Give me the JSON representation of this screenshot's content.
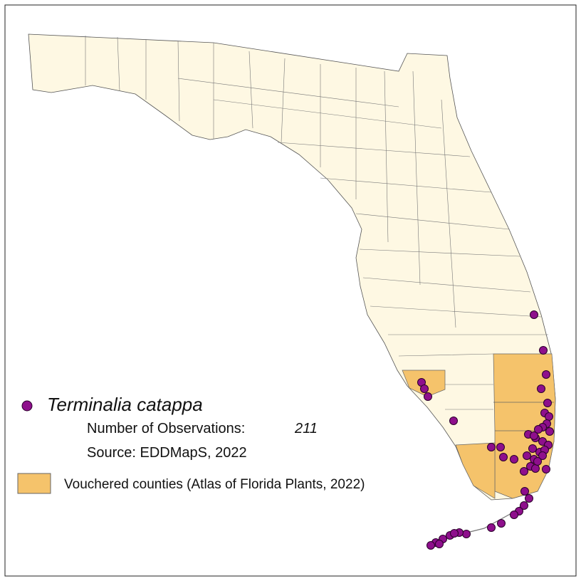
{
  "legend": {
    "species": "Terminalia catappa",
    "observations_label": "Number of Observations:",
    "observations_count": "211",
    "source": "Source: EDDMapS, 2022",
    "vouchered": "Vouchered counties (Atlas of Florida Plants, 2022)"
  }
}
